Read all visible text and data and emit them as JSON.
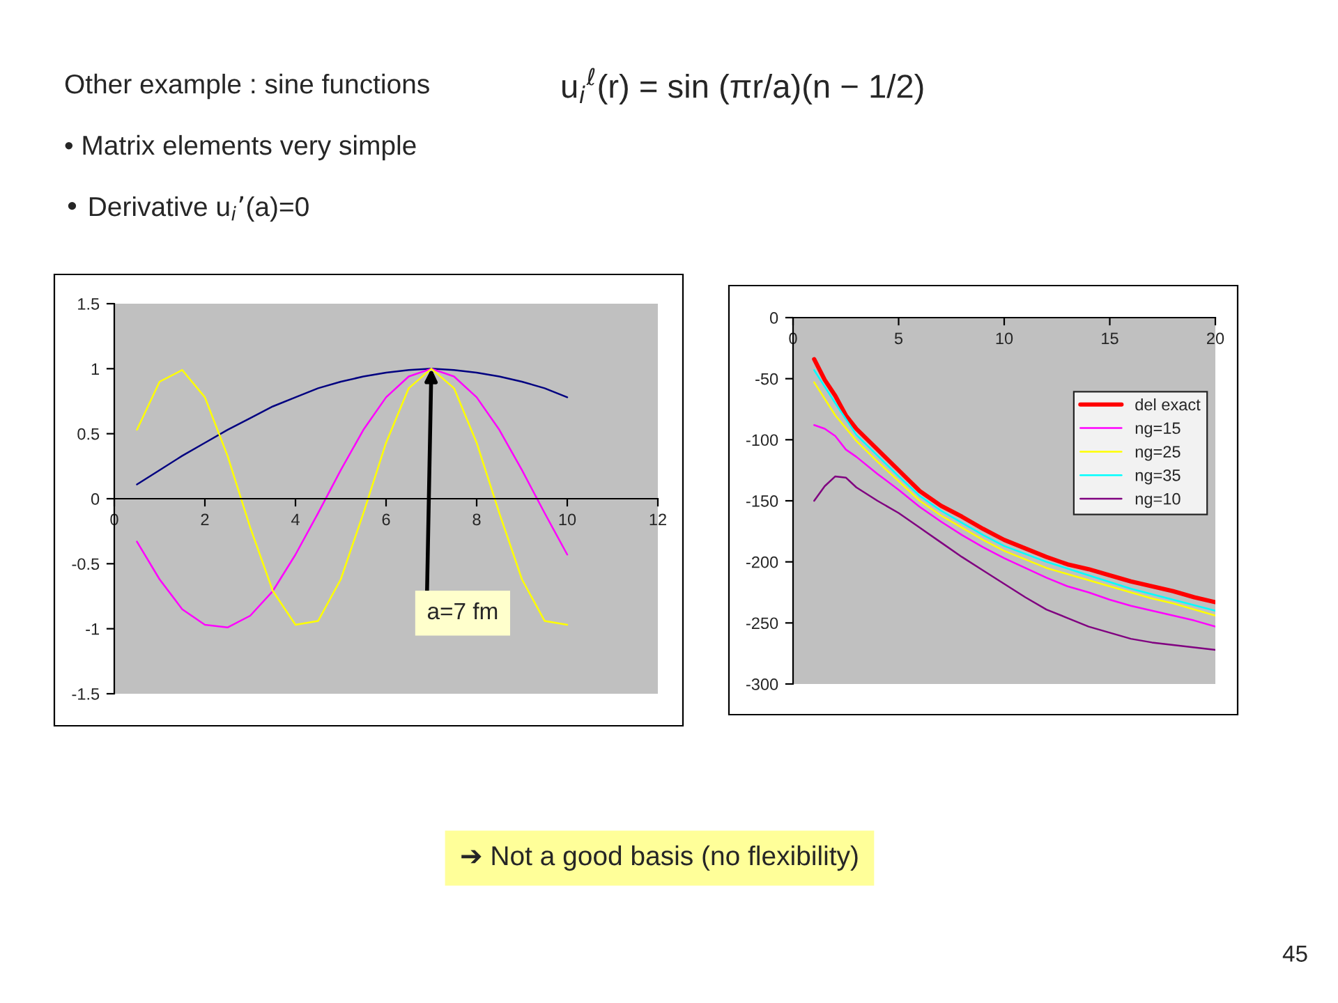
{
  "chart_data": [
    {
      "type": "line",
      "title": "Other example : sine functions",
      "xlim": [
        0,
        12
      ],
      "xticks": [
        0,
        2,
        4,
        6,
        8,
        10,
        12
      ],
      "ylim": [
        -1.5,
        1.5
      ],
      "yticks": [
        -1.5,
        -1,
        -0.5,
        0,
        0.5,
        1,
        1.5
      ],
      "grid": false,
      "legend": false,
      "x": [
        0.5,
        1,
        1.5,
        2,
        2.5,
        3,
        3.5,
        4,
        4.5,
        5,
        5.5,
        6,
        6.5,
        7,
        7.5,
        8,
        8.5,
        9,
        9.5,
        10
      ],
      "series": [
        {
          "color": "#000080",
          "values": [
            0.11,
            0.22,
            0.33,
            0.43,
            0.53,
            0.62,
            0.71,
            0.78,
            0.85,
            0.9,
            0.94,
            0.97,
            0.99,
            1.0,
            0.99,
            0.97,
            0.94,
            0.9,
            0.85,
            0.78
          ]
        },
        {
          "color": "#ff00ff",
          "values": [
            -0.33,
            -0.62,
            -0.85,
            -0.97,
            -0.99,
            -0.9,
            -0.71,
            -0.43,
            -0.11,
            0.22,
            0.53,
            0.78,
            0.94,
            1.0,
            0.94,
            0.78,
            0.53,
            0.22,
            -0.11,
            -0.43
          ]
        },
        {
          "color": "#ffff00",
          "values": [
            0.53,
            0.9,
            0.99,
            0.78,
            0.33,
            -0.22,
            -0.71,
            -0.97,
            -0.94,
            -0.62,
            -0.11,
            0.43,
            0.85,
            1.0,
            0.85,
            0.43,
            -0.11,
            -0.62,
            -0.94,
            -0.97
          ]
        }
      ],
      "annotations": [
        "u$_{i}$$^{ℓ}$(r) = sin (πr/a)(n − 1/2)",
        "• Matrix elements very simple",
        "• Derivative u$_{i}$’(a)=0",
        "➔ Not a good basis (no flexibility)",
        "45",
        {
          "text": "a=7 fm",
          "x": 7,
          "y": 1
        }
      ]
    },
    {
      "type": "line",
      "xlim": [
        0,
        20
      ],
      "xticks": [
        0,
        5,
        10,
        15,
        20
      ],
      "ylim": [
        -300,
        0
      ],
      "yticks": [
        -300,
        -250,
        -200,
        -150,
        -100,
        -50,
        0
      ],
      "grid": false,
      "legend": "top right",
      "series": [
        {
          "name": "del exact",
          "color": "#ff0000",
          "x": [
            1,
            1.5,
            2,
            2.5,
            3,
            4,
            5,
            6,
            7,
            8,
            9,
            10,
            11,
            12,
            13,
            14,
            15,
            16,
            17,
            18,
            19,
            20
          ],
          "values": [
            -34,
            -51,
            -64,
            -80,
            -91,
            -108,
            -125,
            -142,
            -154,
            -163,
            -173,
            -182,
            -189,
            -196,
            -202,
            -206,
            -211,
            -216,
            -220,
            -224,
            -229,
            -233
          ]
        },
        {
          "name": "ng=15",
          "color": "#ff00ff",
          "x": [
            1,
            1.5,
            2,
            2.5,
            3,
            4,
            5,
            6,
            7,
            8,
            9,
            10,
            11,
            12,
            13,
            14,
            15,
            16,
            17,
            18,
            19,
            20
          ],
          "values": [
            -88,
            -91,
            -97,
            -108,
            -114,
            -128,
            -141,
            -155,
            -167,
            -178,
            -188,
            -197,
            -205,
            -213,
            -220,
            -225,
            -231,
            -236,
            -240,
            -244,
            -248,
            -253
          ]
        },
        {
          "name": "ng=25",
          "color": "#ffff00",
          "x": [
            1,
            2,
            3,
            4,
            5,
            6,
            7,
            8,
            9,
            10,
            11,
            12,
            13,
            14,
            15,
            16,
            17,
            18,
            19,
            20
          ],
          "values": [
            -53,
            -80,
            -101,
            -118,
            -134,
            -150,
            -162,
            -172,
            -182,
            -191,
            -198,
            -205,
            -210,
            -215,
            -220,
            -225,
            -230,
            -234,
            -239,
            -244
          ]
        },
        {
          "name": "ng=35",
          "color": "#00ffff",
          "x": [
            1,
            2,
            3,
            4,
            5,
            6,
            7,
            8,
            9,
            10,
            12,
            14,
            16,
            18,
            20
          ],
          "values": [
            -43,
            -70,
            -96,
            -113,
            -130,
            -146,
            -158,
            -168,
            -178,
            -187,
            -200,
            -211,
            -222,
            -231,
            -240
          ]
        },
        {
          "name": "ng=10",
          "color": "#800080",
          "x": [
            1,
            1.5,
            2,
            2.5,
            3,
            4,
            5,
            6,
            7,
            8,
            9,
            10,
            11,
            12,
            13,
            14,
            15,
            16,
            17,
            18,
            19,
            20
          ],
          "values": [
            -150,
            -138,
            -130,
            -131,
            -139,
            -150,
            -160,
            -172,
            -184,
            -196,
            -207,
            -218,
            -229,
            -239,
            -246,
            -253,
            -258,
            -263,
            -266,
            -268,
            -270,
            -272
          ]
        }
      ]
    }
  ]
}
